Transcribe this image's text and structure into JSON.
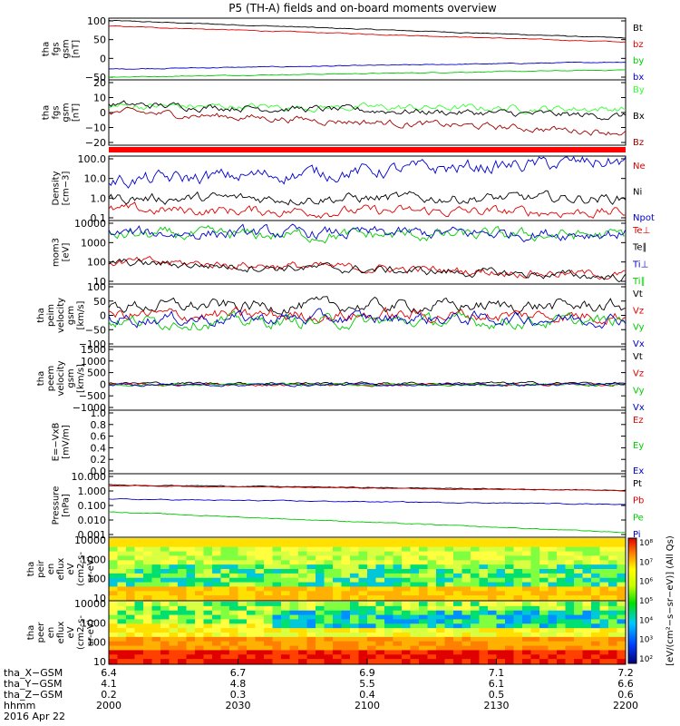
{
  "title": "P5 (TH-A) fields and on-board moments overview",
  "colors": {
    "black": "#000000",
    "red": "#e00000",
    "green": "#00cc00",
    "blue": "#0000cc",
    "darkred": "#a00000",
    "brightgreen": "#33ff33"
  },
  "chart_data": [
    {
      "type": "line",
      "ylabel": [
        "tha",
        "fgs",
        "gsm",
        "[nT]"
      ],
      "yticks": [
        "100",
        "50",
        "0",
        "−50"
      ],
      "ylim": [
        -55,
        100
      ],
      "legend": [
        "Bt",
        "bz",
        "by",
        "bx"
      ],
      "series": [
        {
          "name": "Bt",
          "color": "black",
          "start": 94,
          "end": 50
        },
        {
          "name": "bz",
          "color": "red",
          "start": 80,
          "end": 40
        },
        {
          "name": "by",
          "color": "blue",
          "start": -28,
          "end": -10
        },
        {
          "name": "bx",
          "color": "green",
          "start": -48,
          "end": -30
        }
      ]
    },
    {
      "type": "line",
      "ylabel": [
        "tha",
        "fgs",
        "gsm",
        "[nT]"
      ],
      "yticks": [
        "20",
        "10",
        "0",
        "−10",
        "−20"
      ],
      "ylim": [
        -25,
        20
      ],
      "legend": [
        "By",
        "Bx",
        "Bz"
      ],
      "series": [
        {
          "name": "By",
          "color": "brightgreen",
          "start": 2,
          "end": 0
        },
        {
          "name": "Bx",
          "color": "black",
          "start": 3,
          "end": -5
        },
        {
          "name": "Bz",
          "color": "darkred",
          "start": -2,
          "end": -16
        }
      ]
    },
    {
      "type": "line",
      "ylabel": [
        "Density",
        "[cm−3]"
      ],
      "yticks": [
        "100.0",
        "10.0",
        "1.0",
        "0.1"
      ],
      "ylim": [
        0.05,
        300
      ],
      "legend": [
        "Ne",
        "Ni",
        "Npot"
      ],
      "series": [
        {
          "name": "Ne",
          "color": "red",
          "start": 0.2,
          "end": 0.15
        },
        {
          "name": "Ni",
          "color": "black",
          "start": 1.0,
          "end": 1.0
        },
        {
          "name": "Npot",
          "color": "blue",
          "start": 10,
          "end": 150
        }
      ]
    },
    {
      "type": "line",
      "ylabel": [
        "mom3",
        "[eV]"
      ],
      "yticks": [
        "10000",
        "1000",
        "100",
        "10"
      ],
      "ylim": [
        5,
        12000
      ],
      "legend": [
        "Te⊥",
        "Te∥",
        "Ti⊥",
        "Ti∥"
      ],
      "series": [
        {
          "name": "Ti∥",
          "color": "green",
          "start": 2000,
          "end": 2000
        },
        {
          "name": "Ti⊥",
          "color": "blue",
          "start": 2500,
          "end": 2500
        },
        {
          "name": "Te⊥",
          "color": "red",
          "start": 80,
          "end": 15
        },
        {
          "name": "Te∥",
          "color": "black",
          "start": 70,
          "end": 12
        }
      ]
    },
    {
      "type": "line",
      "ylabel": [
        "tha",
        "peim",
        "velocity",
        "gsm",
        "[km/s]"
      ],
      "yticks": [
        "100",
        "50",
        "0",
        "−50",
        "−100"
      ],
      "ylim": [
        -100,
        100
      ],
      "legend": [
        "Vt",
        "Vz",
        "Vy",
        "Vx"
      ],
      "series": [
        {
          "name": "Vt",
          "color": "black",
          "start": 30,
          "end": 30
        },
        {
          "name": "Vz",
          "color": "red",
          "start": 0,
          "end": 0
        },
        {
          "name": "Vy",
          "color": "green",
          "start": -20,
          "end": -20
        },
        {
          "name": "Vx",
          "color": "blue",
          "start": -10,
          "end": -10
        }
      ]
    },
    {
      "type": "line",
      "ylabel": [
        "tha",
        "peem",
        "velocity",
        "gsm",
        "[km/s]"
      ],
      "yticks": [
        "1500",
        "1000",
        "500",
        "0",
        "−500",
        "−1000"
      ],
      "ylim": [
        -1000,
        1500
      ],
      "legend": [
        "Vt",
        "Vz",
        "Vy",
        "Vx"
      ],
      "series": [
        {
          "name": "Vt",
          "color": "black",
          "start": 60,
          "end": 60
        },
        {
          "name": "Vz",
          "color": "red",
          "start": 0,
          "end": 0
        },
        {
          "name": "Vy",
          "color": "green",
          "start": 0,
          "end": 0
        },
        {
          "name": "Vx",
          "color": "blue",
          "start": 0,
          "end": 0
        }
      ]
    },
    {
      "type": "line",
      "ylabel": [
        "E=−VxB",
        "[mV/m]"
      ],
      "yticks": [
        "1.0",
        "0.8",
        "0.6",
        "0.4",
        "0.2",
        "0.0"
      ],
      "ylim": [
        0,
        1
      ],
      "legend": [
        "Ez",
        "Ey",
        "Ex"
      ],
      "series": []
    },
    {
      "type": "line",
      "ylabel": [
        "Pressure",
        "[nPa]"
      ],
      "yticks": [
        "10.000",
        "1.000",
        "0.100",
        "0.010",
        "0.001"
      ],
      "ylim": [
        0.001,
        10
      ],
      "legend": [
        "Pt",
        "Pb",
        "Pe",
        "Pi"
      ],
      "series": [
        {
          "name": "Pt",
          "color": "black",
          "start": 2.0,
          "end": 0.9
        },
        {
          "name": "Pb",
          "color": "red",
          "start": 1.8,
          "end": 0.85
        },
        {
          "name": "Pi",
          "color": "blue",
          "start": 0.25,
          "end": 0.12
        },
        {
          "name": "Pe",
          "color": "green",
          "start": 0.04,
          "end": 0.002
        }
      ]
    },
    {
      "type": "heatmap",
      "ylabel": [
        "tha",
        "peir",
        "en",
        "eflux",
        "eV",
        "(cm2-s-",
        "sr-eV)"
      ],
      "yticks": [
        "10000",
        "1000",
        "100",
        "10"
      ],
      "ylim": [
        5,
        25000
      ]
    },
    {
      "type": "heatmap",
      "ylabel": [
        "tha",
        "peer",
        "en",
        "eflux",
        "eV",
        "(cm2-s-",
        "sr-eV)"
      ],
      "yticks": [
        "10000",
        "1000",
        "100",
        "10"
      ],
      "ylim": [
        5,
        25000
      ]
    }
  ],
  "colorbar": {
    "ticks": [
      "10⁸",
      "10⁷",
      "10⁶",
      "10⁵",
      "10⁴",
      "10³",
      "10²"
    ],
    "label": "[eV/(cm²−s−sr−eV)] (All Qs)"
  },
  "xaxis": {
    "ticks": [
      "2000",
      "2030",
      "2100",
      "2130",
      "2200"
    ],
    "x_gsm": [
      "6.4",
      "6.7",
      "6.9",
      "7.1",
      "7.2"
    ],
    "y_gsm": [
      "4.1",
      "4.8",
      "5.5",
      "6.1",
      "6.6"
    ],
    "z_gsm": [
      "0.2",
      "0.3",
      "0.4",
      "0.5",
      "0.6"
    ],
    "row_labels": [
      "tha_X−GSM",
      "tha_Y−GSM",
      "tha_Z−GSM",
      "hhmm",
      "2016 Apr 22"
    ]
  }
}
